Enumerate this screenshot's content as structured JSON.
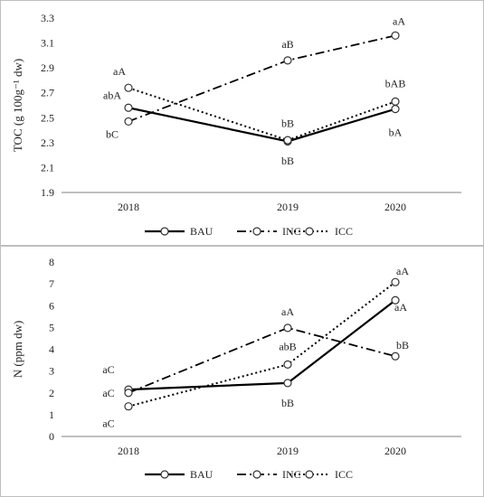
{
  "chart_data": [
    {
      "type": "line",
      "ylabel": "TOC  (g 100g⁻¹ dw)",
      "categories": [
        "2018",
        "2019",
        "2020"
      ],
      "ylim": [
        1.9,
        3.3
      ],
      "yticks": [
        "1.9",
        "2.1",
        "2.3",
        "2.5",
        "2.7",
        "2.9",
        "3.1",
        "3.3"
      ],
      "grid": false,
      "legend_position": "bottom",
      "series": [
        {
          "name": "BAU",
          "style": "solid",
          "values": [
            2.58,
            2.31,
            2.57
          ],
          "labels": [
            "abA",
            "bB",
            "bA"
          ]
        },
        {
          "name": "INC",
          "style": "dashdot",
          "values": [
            2.47,
            2.96,
            3.16
          ],
          "labels": [
            "bC",
            "aB",
            "aA"
          ]
        },
        {
          "name": "ICC",
          "style": "dotted",
          "values": [
            2.74,
            2.32,
            2.63
          ],
          "labels": [
            "aA",
            "bB",
            "bAB"
          ]
        }
      ]
    },
    {
      "type": "line",
      "ylabel": "N (ppm dw)",
      "categories": [
        "2018",
        "2019",
        "2020"
      ],
      "ylim": [
        0,
        8
      ],
      "yticks": [
        "0",
        "1",
        "2",
        "3",
        "4",
        "5",
        "6",
        "7",
        "8"
      ],
      "grid": false,
      "legend_position": "bottom",
      "series": [
        {
          "name": "BAU",
          "style": "solid",
          "values": [
            2.15,
            2.45,
            6.25
          ],
          "labels": [
            "aC",
            "bB",
            "aA"
          ]
        },
        {
          "name": "INC",
          "style": "dashdot",
          "values": [
            2.0,
            4.98,
            3.68
          ],
          "labels": [
            "aC",
            "aA",
            "bB"
          ]
        },
        {
          "name": "ICC",
          "style": "dotted",
          "values": [
            1.38,
            3.3,
            7.08
          ],
          "labels": [
            "aC",
            "abB",
            "aA"
          ]
        }
      ]
    }
  ]
}
